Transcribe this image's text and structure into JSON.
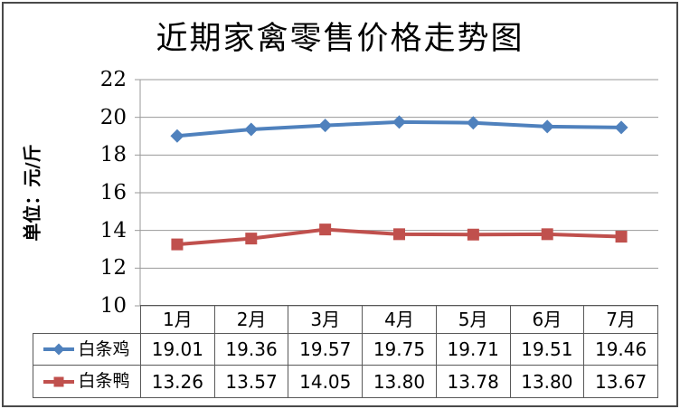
{
  "title": "近期家禽零售价格走势图",
  "y_axis": {
    "unit_label": "单位：元/斤",
    "tick_labels": [
      "22",
      "20",
      "18",
      "16",
      "14",
      "12",
      "10"
    ]
  },
  "colors": {
    "chicken_series": "#4F81BD",
    "duck_series": "#C0504D",
    "gridline": "#9a9a9a",
    "table_border": "#595959",
    "frame": "#4a4a4a"
  },
  "chart_data": {
    "type": "line",
    "title": "近期家禽零售价格走势图",
    "ylabel": "单位：元/斤",
    "xlabel": "",
    "categories": [
      "1月",
      "2月",
      "3月",
      "4月",
      "5月",
      "6月",
      "7月"
    ],
    "series": [
      {
        "name": "白条鸡",
        "marker": "diamond",
        "color": "#4F81BD",
        "values": [
          19.01,
          19.36,
          19.57,
          19.75,
          19.71,
          19.51,
          19.46
        ]
      },
      {
        "name": "白条鸭",
        "marker": "square",
        "color": "#C0504D",
        "values": [
          13.26,
          13.57,
          14.05,
          13.8,
          13.78,
          13.8,
          13.67
        ]
      }
    ],
    "ylim": [
      10,
      22
    ],
    "yticks": [
      10,
      12,
      14,
      16,
      18,
      20,
      22
    ],
    "grid": true,
    "legend_position": "data-table-left",
    "value_decimals": 2
  }
}
